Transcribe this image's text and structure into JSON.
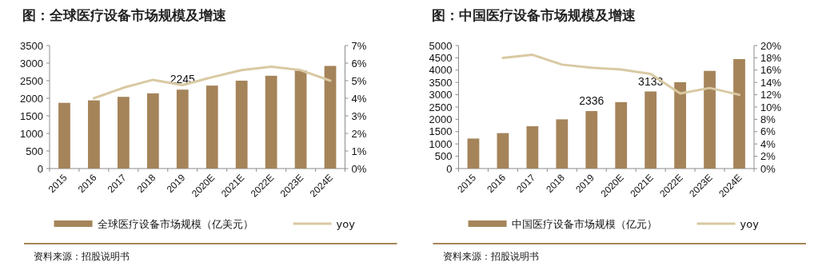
{
  "chart_data": [
    {
      "type": "bar",
      "title": "图：全球医疗设备市场规模及增速",
      "categories": [
        "2015",
        "2016",
        "2017",
        "2018",
        "2019",
        "2020E",
        "2021E",
        "2022E",
        "2023E",
        "2024E"
      ],
      "series": [
        {
          "name": "全球医疗设备市场规模（亿美元）",
          "color": "#a5845a",
          "values": [
            1870,
            1940,
            2040,
            2140,
            2245,
            2360,
            2500,
            2640,
            2790,
            2920
          ],
          "value_labels": [
            null,
            null,
            null,
            null,
            "2245",
            null,
            null,
            null,
            null,
            null
          ]
        },
        {
          "name": "yoy",
          "type": "line",
          "axis": "y2",
          "color": "#d9c9a3",
          "values": [
            null,
            4.0,
            4.6,
            5.05,
            4.75,
            5.2,
            5.6,
            5.8,
            5.6,
            5.0
          ]
        }
      ],
      "ylim": [
        0,
        3500
      ],
      "yticks": [
        0,
        500,
        1000,
        1500,
        2000,
        2500,
        3000,
        3500
      ],
      "y2lim": [
        0,
        7
      ],
      "y2ticks": [
        {
          "value": 0,
          "label": "0%"
        },
        {
          "value": 1,
          "label": "1%"
        },
        {
          "value": 2,
          "label": "2%"
        },
        {
          "value": 3,
          "label": "3%"
        },
        {
          "value": 4,
          "label": "4%"
        },
        {
          "value": 5,
          "label": "5%"
        },
        {
          "value": 6,
          "label": "6%"
        },
        {
          "value": 7,
          "label": "7%"
        }
      ],
      "legend": "bottom",
      "annotations": [
        "资料来源：招股说明书"
      ]
    },
    {
      "type": "bar",
      "title": "图：中国医疗设备市场规模及增速",
      "categories": [
        "2015",
        "2016",
        "2017",
        "2018",
        "2019",
        "2020E",
        "2021E",
        "2022E",
        "2023E",
        "2024E"
      ],
      "series": [
        {
          "name": "中国医疗设备市场规模（亿元）",
          "color": "#a5845a",
          "values": [
            1220,
            1440,
            1720,
            2000,
            2336,
            2700,
            3133,
            3510,
            3970,
            4450
          ],
          "value_labels": [
            null,
            null,
            null,
            null,
            "2336",
            null,
            "3133",
            null,
            null,
            null
          ]
        },
        {
          "name": "yoy",
          "type": "line",
          "axis": "y2",
          "color": "#d9c9a3",
          "values": [
            null,
            18.0,
            18.5,
            16.9,
            16.4,
            16.1,
            15.4,
            12.2,
            13.1,
            12.0
          ]
        }
      ],
      "ylim": [
        0,
        5000
      ],
      "yticks": [
        0,
        500,
        1000,
        1500,
        2000,
        2500,
        3000,
        3500,
        4000,
        4500,
        5000
      ],
      "y2lim": [
        0,
        20
      ],
      "y2ticks": [
        {
          "value": 0,
          "label": "0%"
        },
        {
          "value": 2,
          "label": "2%"
        },
        {
          "value": 4,
          "label": "4%"
        },
        {
          "value": 6,
          "label": "6%"
        },
        {
          "value": 8,
          "label": "8%"
        },
        {
          "value": 10,
          "label": "10%"
        },
        {
          "value": 12,
          "label": "12%"
        },
        {
          "value": 14,
          "label": "14%"
        },
        {
          "value": 16,
          "label": "16%"
        },
        {
          "value": 18,
          "label": "18%"
        },
        {
          "value": 20,
          "label": "20%"
        }
      ],
      "legend": "bottom",
      "annotations": [
        "资料来源：招股说明书"
      ]
    }
  ]
}
